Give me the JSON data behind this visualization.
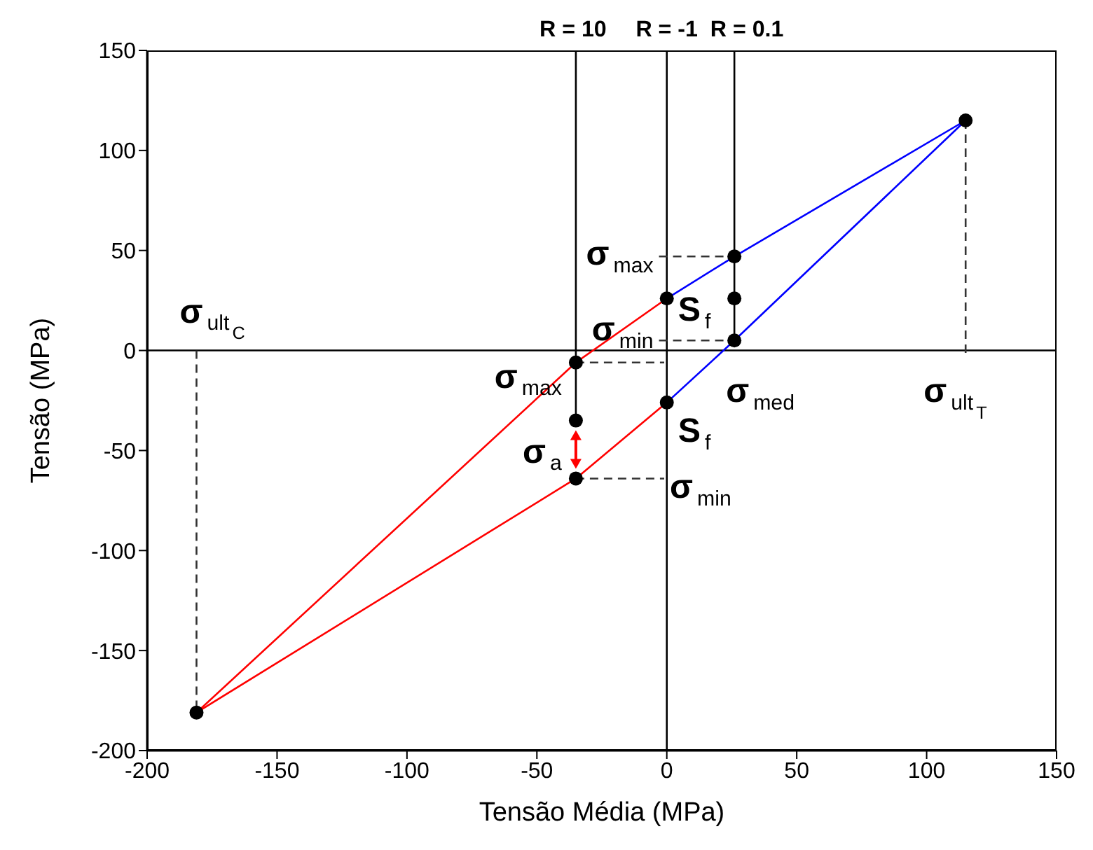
{
  "chart_data": {
    "type": "line",
    "xlabel": "Tensão Média (MPa)",
    "ylabel": "Tensão (MPa)",
    "xlim": [
      -200,
      150
    ],
    "xticks": [
      -200,
      -150,
      -100,
      -50,
      0,
      50,
      100,
      150
    ],
    "ylim": [
      -200,
      150
    ],
    "yticks": [
      -200,
      -150,
      -100,
      -50,
      0,
      50,
      100,
      150
    ],
    "marker": "none",
    "line_style": "solid",
    "series": [
      {
        "color": "#ff0000",
        "x": [
          -181,
          -35,
          0
        ],
        "values": [
          -181,
          -6,
          26
        ]
      },
      {
        "color": "#ff0000",
        "x": [
          -181,
          -35,
          0
        ],
        "values": [
          -181,
          -64,
          -26
        ]
      },
      {
        "color": "#0000ff",
        "x": [
          0,
          26,
          115
        ],
        "values": [
          26,
          47,
          115
        ]
      },
      {
        "color": "#0000ff",
        "x": [
          0,
          26,
          115
        ],
        "values": [
          -26,
          5,
          115
        ]
      },
      {
        "color": "#000000",
        "x": [
          -35,
          -35
        ],
        "values": [
          150,
          -6
        ]
      },
      {
        "color": "#000000",
        "x": [
          0,
          0
        ],
        "values": [
          150,
          -200
        ]
      },
      {
        "color": "#000000",
        "x": [
          26,
          26
        ],
        "values": [
          150,
          5
        ]
      },
      {
        "color": "#000000",
        "x": [
          -35,
          -35
        ],
        "values": [
          -6,
          -35
        ]
      },
      {
        "color": "#333333",
        "line_style": "dashed",
        "x": [
          -181,
          -181
        ],
        "values": [
          0,
          -181
        ]
      },
      {
        "color": "#333333",
        "line_style": "dashed",
        "x": [
          115,
          115
        ],
        "values": [
          115,
          -2
        ]
      },
      {
        "color": "#333333",
        "line_style": "dashed",
        "x": [
          -3,
          26
        ],
        "values": [
          47,
          47
        ]
      },
      {
        "color": "#333333",
        "line_style": "dashed",
        "x": [
          -3,
          26
        ],
        "values": [
          5,
          5
        ]
      },
      {
        "color": "#333333",
        "line_style": "dashed",
        "x": [
          -35,
          -1
        ],
        "values": [
          -6,
          -6
        ]
      },
      {
        "color": "#333333",
        "line_style": "dashed",
        "x": [
          -35,
          -1
        ],
        "values": [
          -64,
          -64
        ]
      },
      {
        "type": "scatter",
        "marker": "circle",
        "color": "#000000",
        "x": [
          115,
          -181,
          0,
          0,
          -35,
          -35,
          -35,
          26,
          26,
          26
        ],
        "values": [
          115,
          -181,
          26,
          -26,
          -6,
          -35,
          -64,
          47,
          26,
          5
        ]
      }
    ],
    "ref_lines": [
      {
        "axis": "y",
        "value": 0,
        "color": "#000000"
      }
    ],
    "annotations": [
      {
        "text": "R = 10",
        "x": -35,
        "y": 150
      },
      {
        "text": "R = -1",
        "x": 0,
        "y": 150
      },
      {
        "text": "R = 0.1",
        "x": 26,
        "y": 150
      },
      {
        "text": "σ$_{ult}$$_{C}$",
        "x": -181,
        "y": 0
      },
      {
        "text": "σ$_{max}$",
        "x": -3,
        "y": 47
      },
      {
        "text": "S$_{f}$",
        "x": 0,
        "y": 26
      },
      {
        "text": "σ$_{min}$",
        "x": -3,
        "y": 5
      },
      {
        "text": "σ$_{max}$",
        "x": -35,
        "y": -6
      },
      {
        "text": "σ$_{med}$",
        "x": 26,
        "y": 5
      },
      {
        "text": "σ$_{ult}$$_{T}$",
        "x": 115,
        "y": -2
      },
      {
        "text": "S$_{f}$",
        "x": 0,
        "y": -26
      },
      {
        "text": "σ$_{a}$",
        "x": -35,
        "y": -35
      },
      {
        "text": "σ$_{min}$",
        "x": -1,
        "y": -64
      }
    ]
  }
}
